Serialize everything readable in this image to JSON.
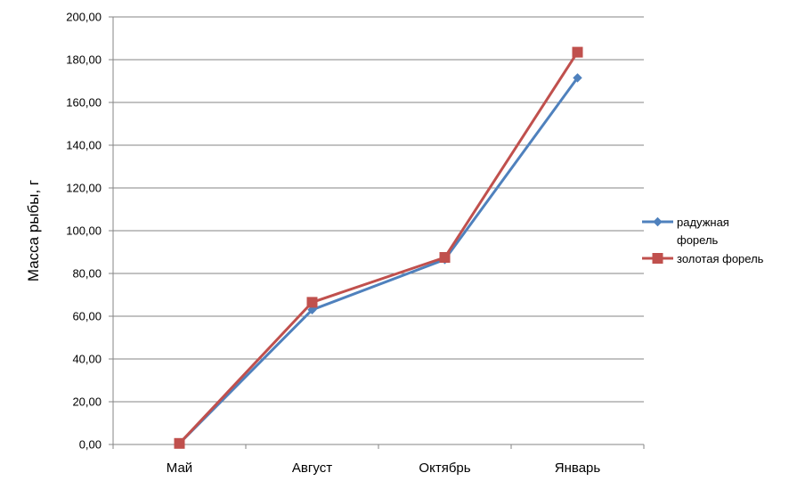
{
  "chart_data": {
    "type": "line",
    "title": "",
    "xlabel": "",
    "ylabel": "Масса рыбы, г",
    "categories": [
      "Май",
      "Август",
      "Октябрь",
      "Январь"
    ],
    "ylim": [
      0,
      200
    ],
    "yticks": [
      "0,00",
      "20,00",
      "40,00",
      "60,00",
      "80,00",
      "100,00",
      "120,00",
      "140,00",
      "160,00",
      "180,00",
      "200,00"
    ],
    "grid": true,
    "legend_position": "right",
    "series": [
      {
        "name_lines": [
          "радужная",
          "форель"
        ],
        "values": [
          0.5,
          63,
          86.5,
          171.5
        ],
        "color": "#4f81bd",
        "marker": "diamond"
      },
      {
        "name_lines": [
          "золотая форель"
        ],
        "values": [
          0.5,
          66.5,
          87.5,
          183.5
        ],
        "color": "#c0504d",
        "marker": "square"
      }
    ]
  }
}
